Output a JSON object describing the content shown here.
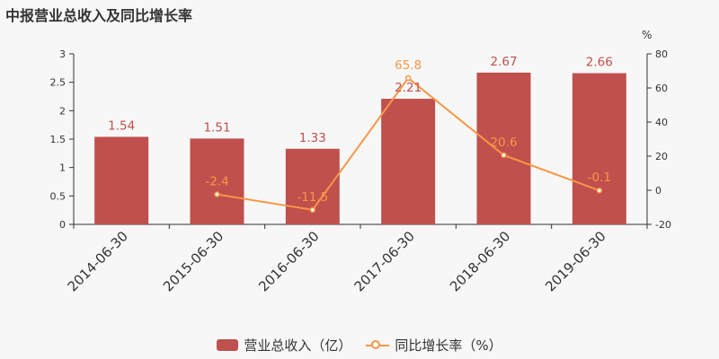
{
  "title": "中报营业总收入及同比增长率",
  "colors": {
    "bar": "#c0504d",
    "line": "#f79646",
    "axis": "#333333",
    "background": "#f7f7f7"
  },
  "chart_data": {
    "type": "bar",
    "categories": [
      "2014-06-30",
      "2015-06-30",
      "2016-06-30",
      "2017-06-30",
      "2018-06-30",
      "2019-06-30"
    ],
    "series": [
      {
        "name": "营业总收入（亿）",
        "type": "bar",
        "axis": "left",
        "values": [
          1.54,
          1.51,
          1.33,
          2.21,
          2.67,
          2.66
        ],
        "labels": [
          "1.54",
          "1.51",
          "1.33",
          "2.21",
          "2.67",
          "2.66"
        ]
      },
      {
        "name": "同比增长率（%）",
        "type": "line",
        "axis": "right",
        "values": [
          null,
          -2.4,
          -11.5,
          65.8,
          20.6,
          -0.1
        ],
        "labels": [
          "",
          "-2.4",
          "-11.5",
          "65.8",
          "20.6",
          "-0.1"
        ]
      }
    ],
    "y_left": {
      "min": 0,
      "max": 3,
      "ticks": [
        0,
        0.5,
        1,
        1.5,
        2,
        2.5,
        3
      ],
      "tick_labels": [
        "0",
        "0.5",
        "1",
        "1.5",
        "2",
        "2.5",
        "3"
      ]
    },
    "y_right": {
      "min": -20,
      "max": 80,
      "ticks": [
        -20,
        0,
        20,
        40,
        60,
        80
      ],
      "tick_labels": [
        "-20",
        "0",
        "20",
        "40",
        "60",
        "80"
      ],
      "unit": "%"
    },
    "grid": false,
    "legend_position": "bottom"
  }
}
